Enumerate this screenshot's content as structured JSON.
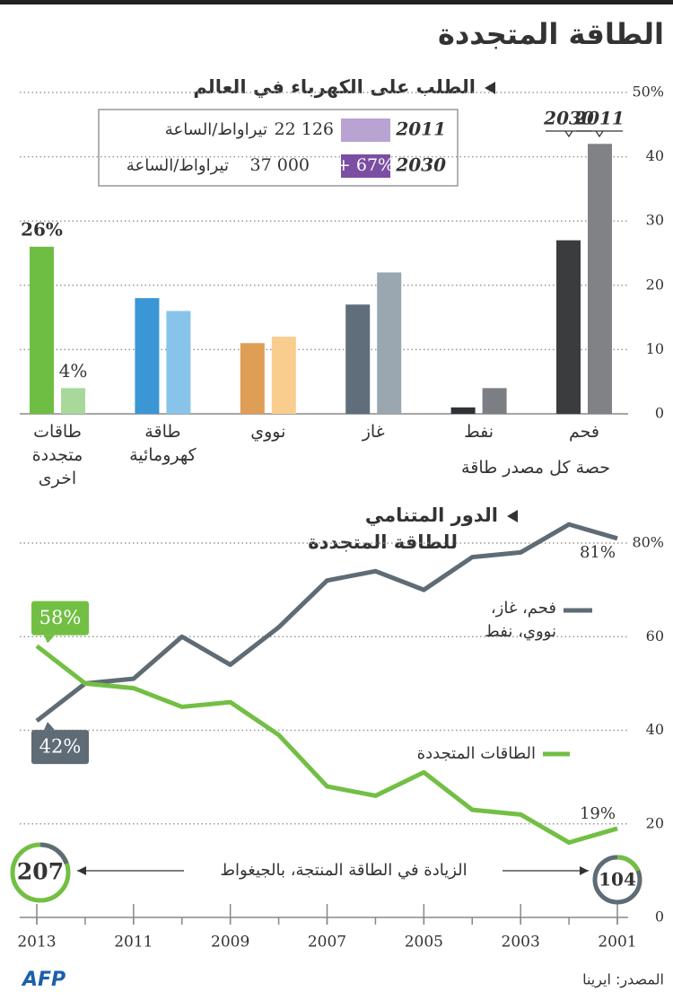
{
  "title": "الطاقة المتجددة",
  "chart_data": [
    {
      "type": "bar",
      "subtitle": "الطلب على الكهرباء في العالم",
      "x_label": "حصة كل مصدر طاقة",
      "categories": [
        "طاقات متجددة اخرى",
        "طاقة كهرومائية",
        "نووي",
        "غاز",
        "نفط",
        "فحم"
      ],
      "series": [
        {
          "name": "2030",
          "colors": [
            "#6fbe44",
            "#3a96d4",
            "#de9e55",
            "#5f6e7a",
            "#2e3236",
            "#3a3c3e"
          ],
          "values": [
            26,
            18,
            11,
            17,
            1,
            27
          ],
          "value_labels": [
            "26%",
            null,
            null,
            null,
            null,
            null
          ]
        },
        {
          "name": "2011",
          "colors": [
            "#a8d89a",
            "#88c3ea",
            "#f9cd8e",
            "#9aa6b0",
            "#7b7f83",
            "#808285"
          ],
          "values": [
            4,
            16,
            12,
            22,
            4,
            42
          ],
          "value_labels": [
            "4%",
            null,
            null,
            null,
            null,
            null
          ]
        }
      ],
      "ylim": [
        0,
        50
      ],
      "yticks": [
        0,
        10,
        20,
        30,
        40,
        {
          "value": 50,
          "label": "50%"
        }
      ],
      "grid": true,
      "demand": [
        {
          "year": "2011",
          "value": "22 126",
          "unit": "تيراواط/الساعة",
          "color": "#b9a3d3"
        },
        {
          "year": "2030",
          "change": "+ 67%",
          "value": "37 000",
          "unit": "تيراواط/الساعة",
          "color": "#7b4ea3"
        }
      ]
    },
    {
      "type": "line",
      "subtitle": [
        "الدور المتنامي",
        "للطاقة المتجددة"
      ],
      "x": [
        2013,
        2012,
        2011,
        2010,
        2009,
        2008,
        2007,
        2006,
        2005,
        2004,
        2003,
        2002,
        2001
      ],
      "series": [
        {
          "name": "فحم، غاز، نووي، نفط",
          "color": "#5f6b75",
          "values": [
            42,
            50,
            51,
            60,
            54,
            62,
            72,
            74,
            70,
            77,
            78,
            84,
            81
          ],
          "value_labels": [
            "42%",
            null,
            null,
            null,
            null,
            null,
            null,
            null,
            null,
            null,
            null,
            null,
            "81%"
          ]
        },
        {
          "name": "الطاقات المتجددة",
          "color": "#72bf44",
          "values": [
            58,
            50,
            49,
            45,
            46,
            39,
            28,
            26,
            31,
            23,
            22,
            16,
            19
          ],
          "value_labels": [
            "58%",
            null,
            null,
            null,
            null,
            null,
            null,
            null,
            null,
            null,
            null,
            null,
            "19%"
          ]
        }
      ],
      "xlim": [
        2013,
        2001
      ],
      "xticks": [
        2013,
        2011,
        2009,
        2007,
        2005,
        2003,
        2001
      ],
      "ylim": [
        0,
        80
      ],
      "yticks": [
        0,
        20,
        40,
        60,
        {
          "value": 80,
          "label": "80%"
        }
      ],
      "grid": true,
      "increase": {
        "label": "الزيادة في الطاقة المنتجة، بالجيغواط",
        "values": [
          207,
          104
        ]
      }
    }
  ],
  "source": "المصدر: ايرينا",
  "logo": "AFP"
}
